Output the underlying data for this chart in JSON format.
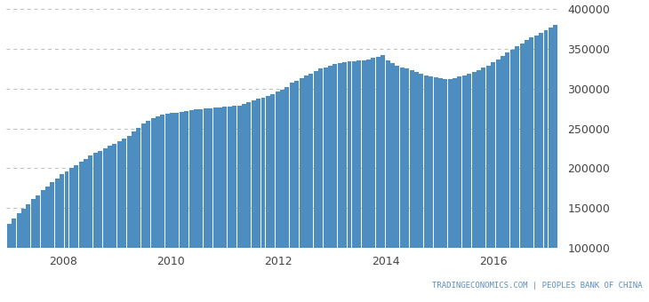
{
  "bar_color": "#4e8dbf",
  "background_color": "#ffffff",
  "grid_color": "#bbbbbb",
  "ylim": [
    100000,
    400000
  ],
  "yticks": [
    100000,
    150000,
    200000,
    250000,
    300000,
    350000,
    400000
  ],
  "xtick_years": [
    2008,
    2010,
    2012,
    2014,
    2016
  ],
  "x_start_year": 2007.0,
  "x_end_year": 2017.25,
  "values": [
    130000,
    137000,
    143000,
    149000,
    155000,
    161000,
    166000,
    172000,
    177000,
    182000,
    187000,
    192000,
    196000,
    200000,
    204000,
    208000,
    212000,
    216000,
    219000,
    222000,
    225000,
    228000,
    231000,
    234000,
    237000,
    241000,
    246000,
    251000,
    256000,
    260000,
    263000,
    265000,
    267000,
    268000,
    269000,
    270000,
    271000,
    272000,
    273000,
    274000,
    274500,
    275000,
    275500,
    276000,
    276500,
    277000,
    277500,
    278000,
    279000,
    281000,
    283000,
    285000,
    287000,
    289000,
    291000,
    293000,
    296000,
    299000,
    302000,
    307000,
    310000,
    313000,
    316000,
    319000,
    322000,
    325000,
    327000,
    329000,
    331000,
    332000,
    333000,
    334000,
    334500,
    335000,
    336000,
    337000,
    338500,
    340000,
    342000,
    335000,
    332000,
    329000,
    327000,
    325000,
    323000,
    321000,
    319000,
    317000,
    315500,
    314000,
    313000,
    312500,
    312000,
    313000,
    315000,
    317000,
    319000,
    321000,
    323000,
    326000,
    329000,
    333000,
    337000,
    341000,
    345000,
    349000,
    353000,
    357000,
    361000,
    364000,
    367000,
    370000,
    373000,
    377000,
    380000
  ]
}
